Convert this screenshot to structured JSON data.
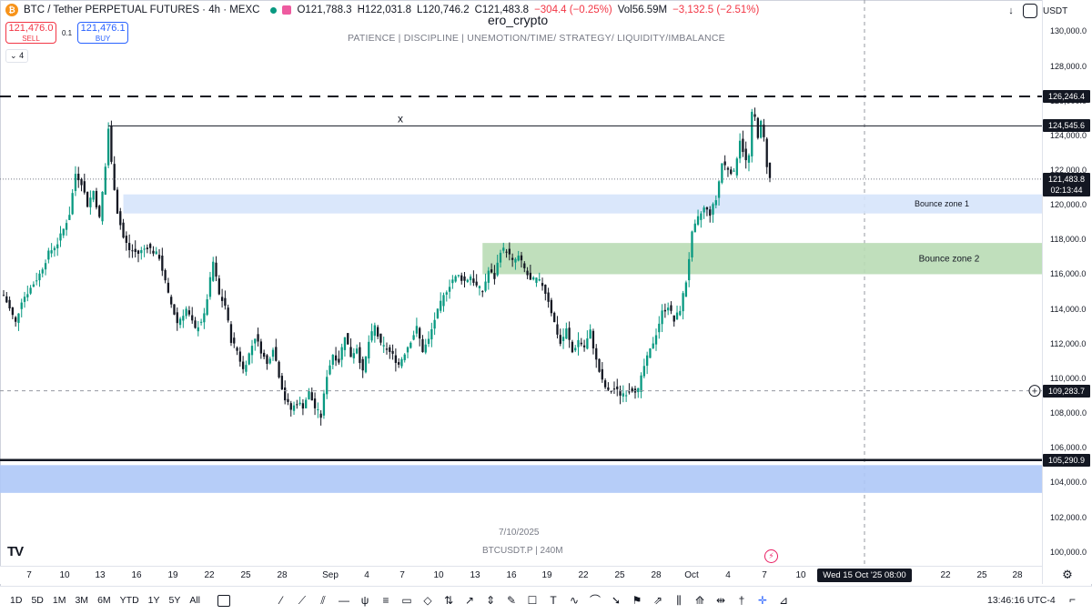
{
  "header": {
    "coin_symbol": "₿",
    "title": "BTC / Tether PERPETUAL FUTURES · 4h · MEXC",
    "open": "O121,788.3",
    "high": "H122,031.8",
    "low": "L120,746.2",
    "close": "C121,483.8",
    "change": "−304.4 (−0.25%)",
    "volume": "Vol56.59M",
    "vol_change": "−3,132.5 (−2.51%)"
  },
  "trade": {
    "sell_price": "121,476.0",
    "sell_label": "SELL",
    "spread": "0.1",
    "buy_price": "121,476.1",
    "buy_label": "BUY",
    "indicator_count": "4"
  },
  "top_right": {
    "currency": "USDT"
  },
  "watermark": {
    "user": "ero_crypto",
    "motto": "PATIENCE   |   DISCIPLINE   |   UNEMOTION/TIME/ STRATEGY/ LIQUIDITY/IMBALANCE",
    "date": "7/10/2025",
    "symbol": "BTCUSDT.P  |  240M"
  },
  "annotations": {
    "x_marker": "x",
    "zone1": "Bounce zone 1",
    "zone2": "Bounce zone 2"
  },
  "price_tags": {
    "resistance_dashed": "126,246.4",
    "ath_line": "124,545.6",
    "last_price": "121,483.8",
    "countdown": "02:13:44",
    "crosshair_price": "109,283.7",
    "support_solid": "105,290.9"
  },
  "crosshair_time": "Wed 15 Oct '25  08:00",
  "clock": "13:46:16 UTC-4",
  "ranges": [
    "1D",
    "5D",
    "1M",
    "3M",
    "6M",
    "YTD",
    "1Y",
    "5Y",
    "All"
  ],
  "chart_data": {
    "type": "candlestick",
    "symbol": "BTCUSDT.P",
    "interval": "4h",
    "y_ticks": [
      130000,
      128000,
      126000,
      124000,
      122000,
      120000,
      118000,
      116000,
      114000,
      112000,
      110000,
      108000,
      106000,
      104000,
      102000,
      100000
    ],
    "y_tick_labels": [
      "130,000.0",
      "128,000.0",
      "126,000.0",
      "124,000.0",
      "122,000.0",
      "120,000.0",
      "118,000.0",
      "116,000.0",
      "114,000.0",
      "112,000.0",
      "110,000.0",
      "108,000.0",
      "106,000.0",
      "104,000.0",
      "102,000.0",
      "100,000.0"
    ],
    "ylim": [
      99200,
      131800
    ],
    "x_labels": [
      "7",
      "10",
      "13",
      "16",
      "19",
      "22",
      "25",
      "28",
      "Sep",
      "4",
      "7",
      "10",
      "13",
      "16",
      "19",
      "22",
      "25",
      "28",
      "Oct",
      "4",
      "7",
      "10",
      "",
      "22",
      "25",
      "28"
    ],
    "path_points": [
      [
        0,
        114800
      ],
      [
        2,
        114000
      ],
      [
        4,
        113200
      ],
      [
        6,
        114500
      ],
      [
        9,
        115200
      ],
      [
        12,
        116000
      ],
      [
        15,
        117200
      ],
      [
        18,
        117800
      ],
      [
        20,
        118600
      ],
      [
        22,
        119500
      ],
      [
        24,
        121800
      ],
      [
        26,
        121300
      ],
      [
        28,
        120000
      ],
      [
        30,
        120800
      ],
      [
        32,
        119200
      ],
      [
        34,
        122200
      ],
      [
        35,
        124400
      ],
      [
        36,
        122400
      ],
      [
        38,
        119600
      ],
      [
        40,
        118100
      ],
      [
        42,
        117400
      ],
      [
        45,
        117200
      ],
      [
        48,
        117600
      ],
      [
        52,
        117000
      ],
      [
        55,
        114800
      ],
      [
        58,
        113200
      ],
      [
        61,
        114000
      ],
      [
        64,
        112800
      ],
      [
        67,
        113600
      ],
      [
        70,
        116700
      ],
      [
        72,
        114800
      ],
      [
        74,
        114200
      ],
      [
        76,
        112200
      ],
      [
        78,
        111600
      ],
      [
        80,
        110500
      ],
      [
        82,
        111400
      ],
      [
        84,
        112400
      ],
      [
        86,
        111600
      ],
      [
        88,
        110800
      ],
      [
        90,
        111800
      ],
      [
        92,
        110200
      ],
      [
        94,
        108800
      ],
      [
        96,
        108200
      ],
      [
        98,
        108600
      ],
      [
        100,
        108400
      ],
      [
        102,
        109200
      ],
      [
        104,
        108300
      ],
      [
        106,
        107800
      ],
      [
        108,
        110200
      ],
      [
        110,
        111400
      ],
      [
        112,
        111000
      ],
      [
        114,
        112500
      ],
      [
        116,
        111300
      ],
      [
        118,
        111800
      ],
      [
        120,
        110300
      ],
      [
        122,
        112100
      ],
      [
        124,
        113000
      ],
      [
        126,
        111900
      ],
      [
        128,
        111700
      ],
      [
        130,
        111300
      ],
      [
        132,
        110800
      ],
      [
        134,
        111500
      ],
      [
        136,
        112200
      ],
      [
        138,
        112900
      ],
      [
        140,
        111600
      ],
      [
        142,
        112200
      ],
      [
        144,
        113400
      ],
      [
        146,
        114300
      ],
      [
        148,
        115100
      ],
      [
        150,
        115700
      ],
      [
        152,
        115900
      ],
      [
        154,
        115600
      ],
      [
        156,
        115900
      ],
      [
        158,
        115300
      ],
      [
        160,
        115000
      ],
      [
        162,
        116200
      ],
      [
        164,
        115800
      ],
      [
        166,
        117400
      ],
      [
        168,
        117400
      ],
      [
        170,
        116700
      ],
      [
        172,
        117000
      ],
      [
        174,
        116300
      ],
      [
        176,
        115600
      ],
      [
        178,
        115700
      ],
      [
        180,
        115400
      ],
      [
        182,
        114500
      ],
      [
        184,
        113200
      ],
      [
        186,
        112000
      ],
      [
        188,
        112800
      ],
      [
        190,
        111500
      ],
      [
        192,
        112200
      ],
      [
        194,
        111800
      ],
      [
        196,
        112700
      ],
      [
        198,
        111000
      ],
      [
        200,
        109800
      ],
      [
        202,
        109200
      ],
      [
        204,
        109400
      ],
      [
        206,
        109100
      ],
      [
        208,
        109200
      ],
      [
        210,
        109400
      ],
      [
        212,
        109300
      ],
      [
        214,
        110700
      ],
      [
        216,
        111600
      ],
      [
        218,
        112600
      ],
      [
        220,
        113800
      ],
      [
        222,
        114200
      ],
      [
        224,
        113300
      ],
      [
        226,
        114000
      ],
      [
        228,
        115600
      ],
      [
        230,
        118300
      ],
      [
        232,
        119200
      ],
      [
        234,
        119800
      ],
      [
        236,
        119500
      ],
      [
        238,
        120300
      ],
      [
        240,
        122400
      ],
      [
        242,
        122100
      ],
      [
        244,
        121800
      ],
      [
        246,
        123800
      ],
      [
        248,
        122500
      ],
      [
        249,
        122800
      ],
      [
        250,
        125200
      ],
      [
        251,
        125000
      ],
      [
        252,
        124000
      ],
      [
        253,
        124700
      ],
      [
        254,
        123800
      ],
      [
        255,
        122300
      ],
      [
        256,
        121484
      ]
    ],
    "candle_count": 257,
    "horizontal_levels": [
      {
        "label": "resistance",
        "price": 126246.4,
        "style": "dashed"
      },
      {
        "label": "x-level",
        "price": 124545.6,
        "style": "solid-thin",
        "start_index": 35
      },
      {
        "label": "last-price",
        "price": 121483.8,
        "style": "dotted"
      },
      {
        "label": "crosshair",
        "price": 109283.7,
        "style": "dashed-grey"
      },
      {
        "label": "support",
        "price": 105290.9,
        "style": "solid-thick"
      }
    ],
    "zones": [
      {
        "name": "Bounce zone 1",
        "top": 120600,
        "bottom": 119500,
        "start_index": 40,
        "color": "#d6e4fb"
      },
      {
        "name": "Bounce zone 2",
        "top": 117800,
        "bottom": 116000,
        "start_index": 160,
        "color": "#b9dbb5"
      },
      {
        "name": "",
        "top": 105000,
        "bottom": 103400,
        "start_index": 0,
        "color": "#aec8f7"
      }
    ],
    "crosshair_x_label": "Wed 15 Oct '25  08:00"
  },
  "colors": {
    "up": "#089981",
    "down": "#131722",
    "accent_red": "#f23645",
    "accent_blue": "#2962ff"
  },
  "tools": [
    "trend-line-icon",
    "ray-icon",
    "parallel-channel-icon",
    "horizontal-line-icon",
    "pitchfork-icon",
    "fib-icon",
    "rectangle-icon",
    "rotated-rectangle-icon",
    "position-icon",
    "arrow-icon",
    "price-range-icon",
    "brush-icon",
    "callout-icon",
    "text-icon",
    "path-icon",
    "curve-icon",
    "arrow-marker-icon",
    "flag-icon",
    "forecast-icon",
    "bars-pattern-icon",
    "projection-icon",
    "date-range-icon",
    "cursor-icon",
    "cross-icon",
    "ruler-icon"
  ]
}
